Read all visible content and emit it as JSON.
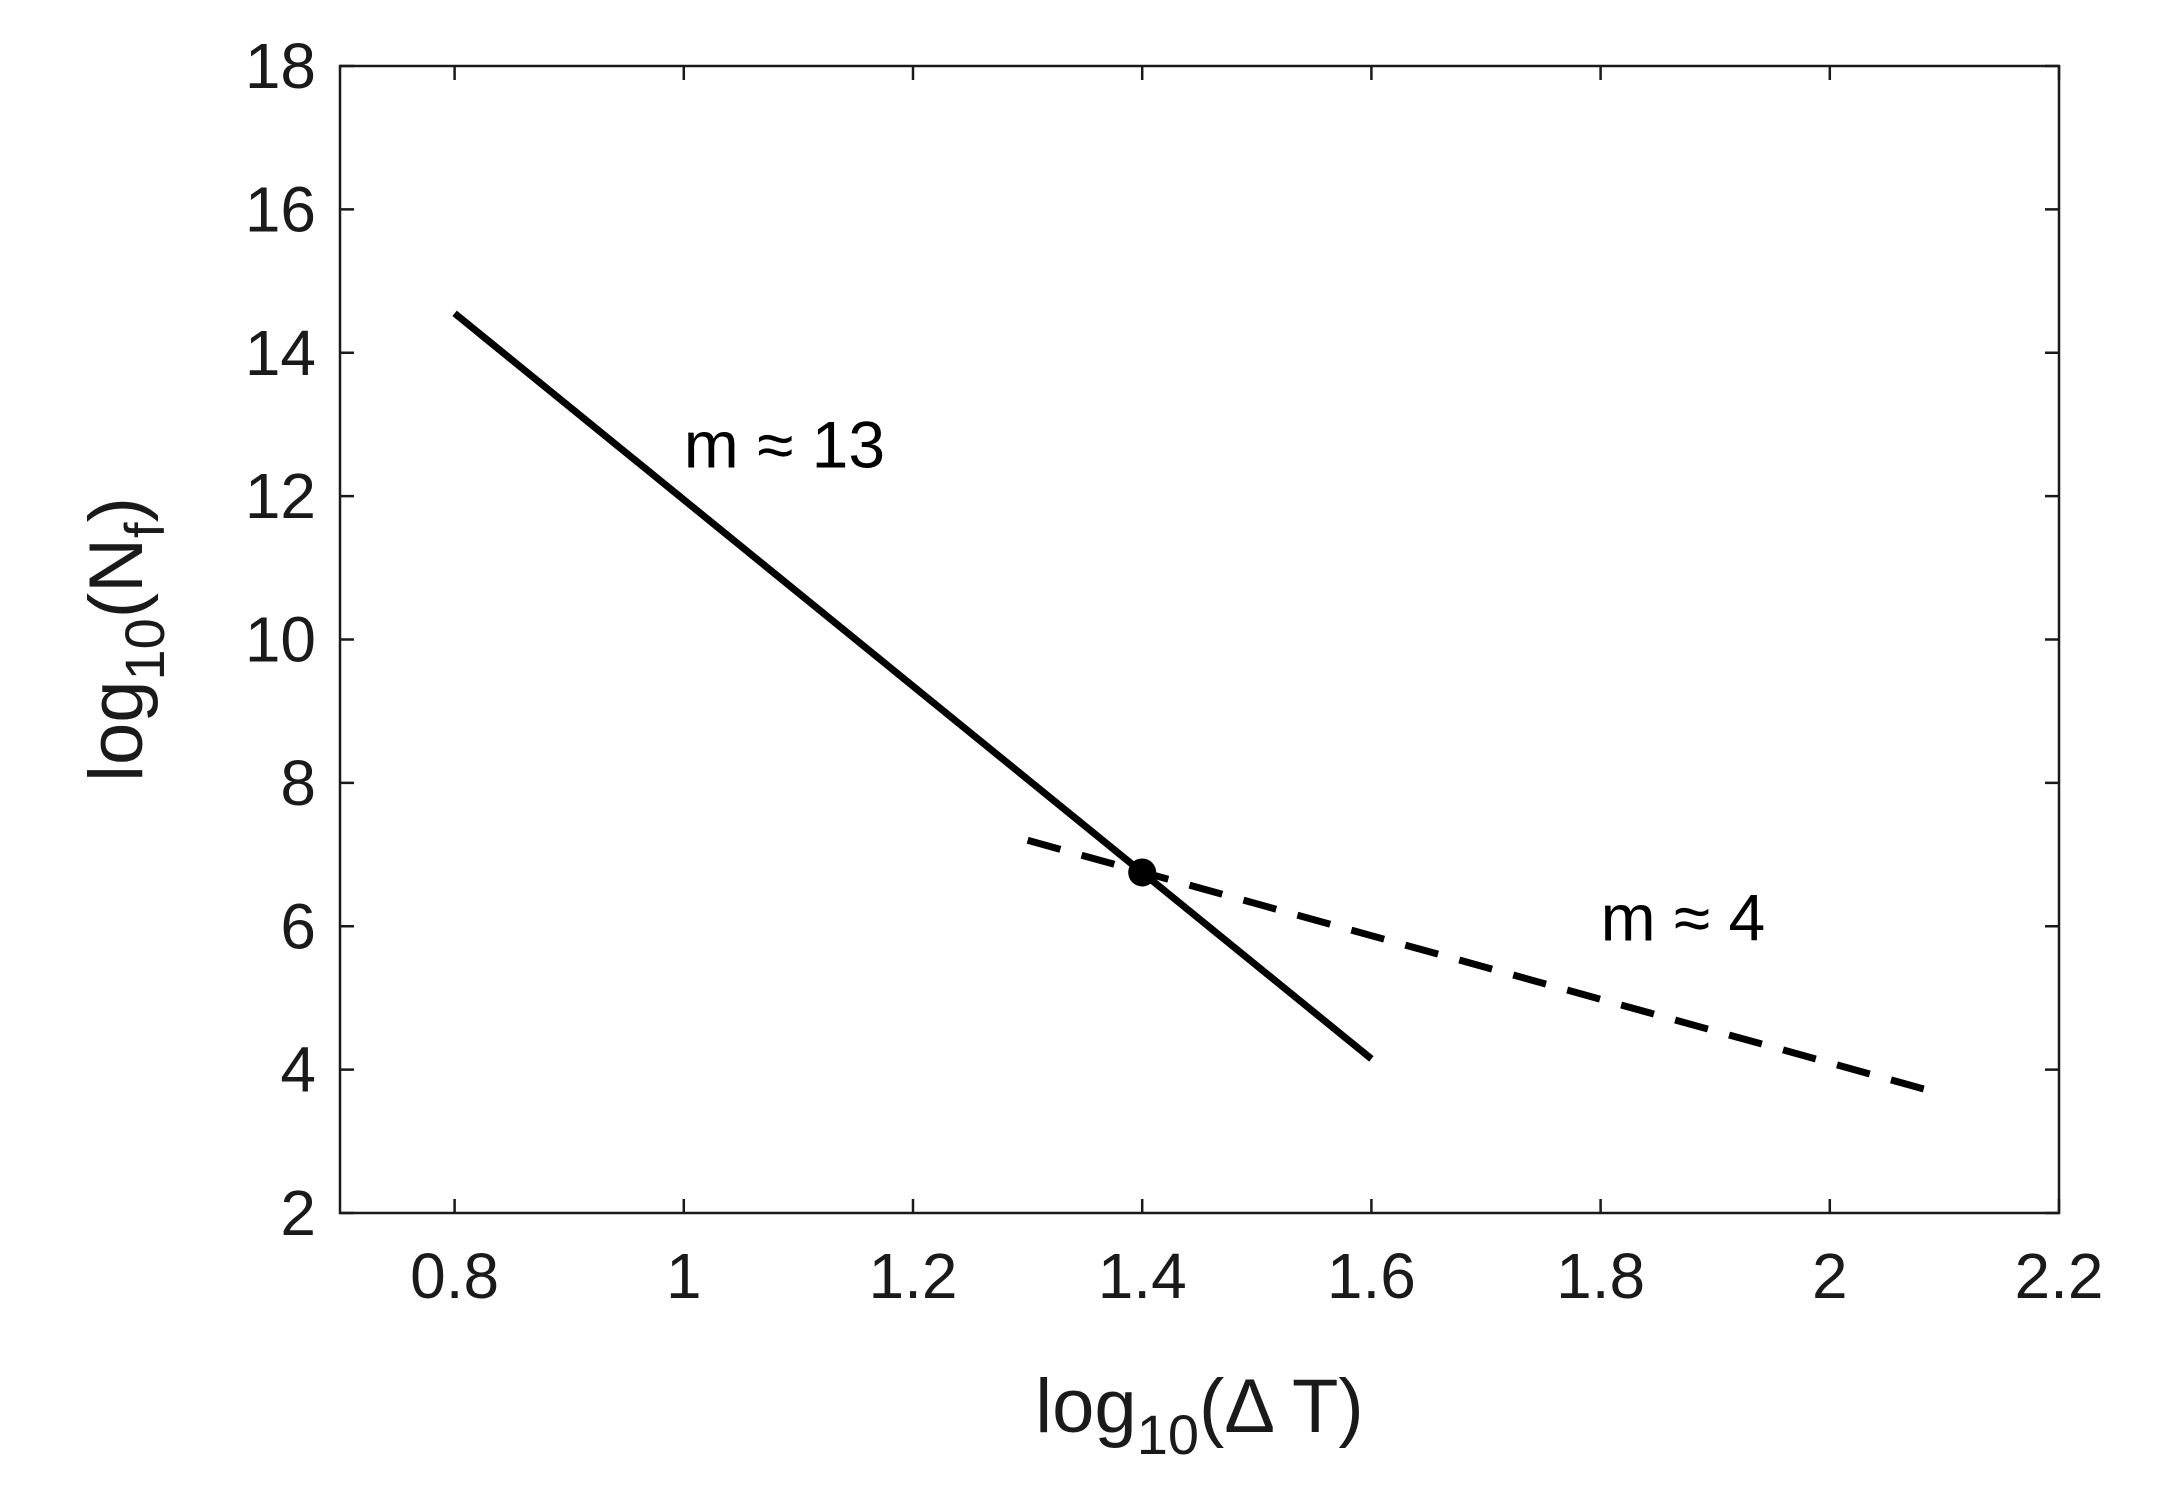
{
  "chart_data": {
    "type": "line",
    "title": "",
    "xlabel": {
      "prefix": "log",
      "sub": "10",
      "suffix": "(Δ T)"
    },
    "ylabel": {
      "prefix": "log",
      "sub": "10",
      "mid": "(N",
      "sub2": "f",
      "suffix": ")"
    },
    "xlim": [
      0.7,
      2.2
    ],
    "ylim": [
      2,
      18
    ],
    "xticks": [
      0.8,
      1,
      1.2,
      1.4,
      1.6,
      1.8,
      2,
      2.2
    ],
    "xtick_labels": [
      "0.8",
      "1",
      "1.2",
      "1.4",
      "1.6",
      "1.8",
      "2",
      "2.2"
    ],
    "yticks": [
      2,
      4,
      6,
      8,
      10,
      12,
      14,
      16,
      18
    ],
    "ytick_labels": [
      "2",
      "4",
      "6",
      "8",
      "10",
      "12",
      "14",
      "16",
      "18"
    ],
    "grid": false,
    "series": [
      {
        "style": "solid",
        "color": "#000000",
        "x": [
          0.8,
          1.6
        ],
        "y": [
          14.55,
          4.15
        ]
      },
      {
        "style": "dashed",
        "color": "#000000",
        "x": [
          1.3,
          2.1
        ],
        "y": [
          7.2,
          3.65
        ]
      }
    ],
    "points": [
      {
        "x": 1.4,
        "y": 6.75
      }
    ],
    "annotations": [
      {
        "text": "m ≈ 13",
        "x": 1.0,
        "y": 12.4
      },
      {
        "text": "m ≈ 4",
        "x": 1.8,
        "y": 5.8
      }
    ]
  }
}
